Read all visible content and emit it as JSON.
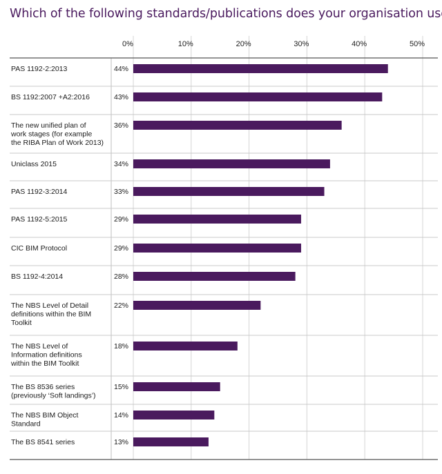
{
  "chart_data": {
    "type": "bar",
    "orientation": "horizontal",
    "title": "Which of the following standards/publications does your organisation use?",
    "xlabel": "",
    "ylabel": "",
    "xlim": [
      0,
      50
    ],
    "ticks": [
      "0%",
      "10%",
      "20%",
      "30%",
      "40%",
      "50%"
    ],
    "tick_values": [
      0,
      10,
      20,
      30,
      40,
      50
    ],
    "grid": true,
    "bar_color": "#4a1a5e",
    "categories": [
      [
        "PAS 1192-2:2013"
      ],
      [
        "BS 1192:2007 +A2:2016"
      ],
      [
        "The new unified plan of",
        "work stages (for example",
        "the RIBA Plan of Work 2013)"
      ],
      [
        "Uniclass 2015"
      ],
      [
        "PAS 1192-3:2014"
      ],
      [
        "PAS 1192-5:2015"
      ],
      [
        "CIC BIM Protocol"
      ],
      [
        "BS 1192-4:2014"
      ],
      [
        "The NBS Level of Detail",
        "definitions within the BIM",
        "Toolkit"
      ],
      [
        "The NBS Level of",
        "Information definitions",
        "within the BIM Toolkit"
      ],
      [
        "The BS 8536 series",
        "(previously ‘Soft landings’)"
      ],
      [
        "The NBS BIM Object",
        "Standard"
      ],
      [
        "The BS 8541 series"
      ]
    ],
    "values": [
      44,
      43,
      36,
      34,
      33,
      29,
      29,
      28,
      22,
      18,
      15,
      14,
      13
    ],
    "value_labels": [
      "44%",
      "43%",
      "36%",
      "34%",
      "33%",
      "29%",
      "29%",
      "28%",
      "22%",
      "18%",
      "15%",
      "14%",
      "13%"
    ]
  }
}
